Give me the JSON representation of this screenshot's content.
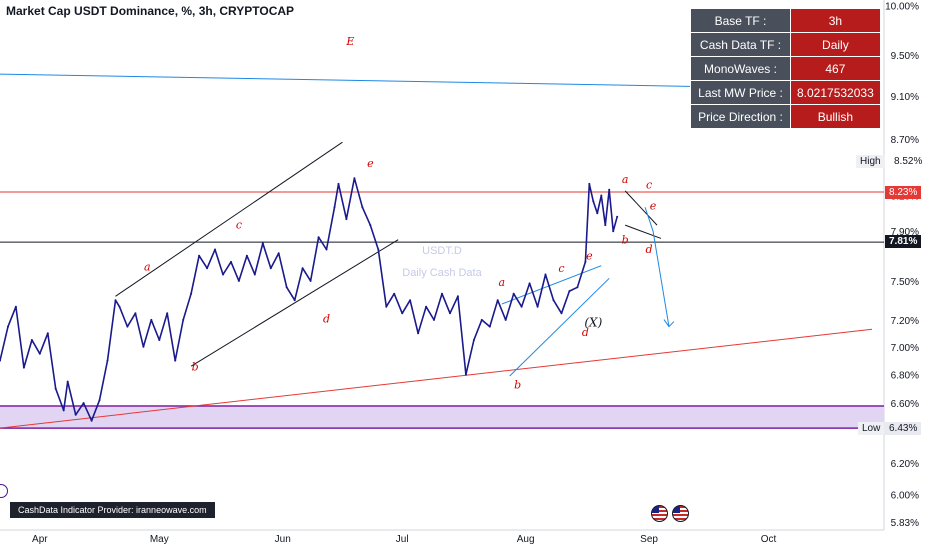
{
  "title": "Market Cap USDT Dominance, %, 3h, CRYPTOCAP",
  "info_table": [
    {
      "key": "Base TF :",
      "value": "3h"
    },
    {
      "key": "Cash Data TF :",
      "value": "Daily"
    },
    {
      "key": "MonoWaves :",
      "value": "467"
    },
    {
      "key": "Last MW Price :",
      "value": "8.0217532033"
    },
    {
      "key": "Price Direction :",
      "value": "Bullish"
    }
  ],
  "provider": "CashData Indicator Provider: iranneowave.com",
  "watermark": {
    "line1": "USDT.D",
    "line2": "Daily Cash Data"
  },
  "price_tags": {
    "red": "8.23%",
    "black": "7.81%",
    "low": "6.43%",
    "high_price": "8.52%",
    "high_label": "High",
    "low_label": "Low"
  },
  "colors": {
    "price": "#1a1a8c",
    "channel": "#131722",
    "trend_blue": "#1e88e5",
    "trend_red": "#e53935",
    "wave_label": "#d50000",
    "zone_fill": "#e1d5f3",
    "zone_border": "#7b1fa2"
  },
  "chart_data": {
    "type": "line",
    "title": "Market Cap USDT Dominance, %, 3h, CRYPTOCAP",
    "xlabel": "",
    "ylabel": "",
    "y_scale": "log",
    "ylim": [
      5.78,
      10.06
    ],
    "y_ticks": [
      "10.00%",
      "9.50%",
      "9.10%",
      "8.70%",
      "8.52%",
      "8.20%",
      "7.90%",
      "7.50%",
      "7.20%",
      "7.00%",
      "6.80%",
      "6.60%",
      "6.43%",
      "6.20%",
      "6.00%",
      "5.83%"
    ],
    "x_ticks": [
      "Apr",
      "May",
      "Jun",
      "Jul",
      "Aug",
      "Sep",
      "Oct"
    ],
    "x_tick_dates": [
      "2023-04-01",
      "2023-05-01",
      "2023-06-01",
      "2023-07-01",
      "2023-08-01",
      "2023-09-01",
      "2023-10-01"
    ],
    "xlim": [
      "2023-03-22",
      "2023-10-30"
    ],
    "grid": false,
    "legend": "none",
    "series": [
      {
        "values": [
          [
            "2023-03-22",
            6.9
          ],
          [
            "2023-03-24",
            7.15
          ],
          [
            "2023-03-26",
            7.3
          ],
          [
            "2023-03-28",
            6.85
          ],
          [
            "2023-03-30",
            7.05
          ],
          [
            "2023-04-01",
            6.95
          ],
          [
            "2023-04-03",
            7.1
          ],
          [
            "2023-04-05",
            6.7
          ],
          [
            "2023-04-07",
            6.55
          ],
          [
            "2023-04-08",
            6.75
          ],
          [
            "2023-04-10",
            6.52
          ],
          [
            "2023-04-12",
            6.6
          ],
          [
            "2023-04-14",
            6.48
          ],
          [
            "2023-04-16",
            6.62
          ],
          [
            "2023-04-18",
            6.9
          ],
          [
            "2023-04-20",
            7.35
          ],
          [
            "2023-04-21",
            7.3
          ],
          [
            "2023-04-23",
            7.15
          ],
          [
            "2023-04-25",
            7.25
          ],
          [
            "2023-04-27",
            7.0
          ],
          [
            "2023-04-29",
            7.2
          ],
          [
            "2023-05-01",
            7.05
          ],
          [
            "2023-05-03",
            7.25
          ],
          [
            "2023-05-05",
            6.9
          ],
          [
            "2023-05-07",
            7.2
          ],
          [
            "2023-05-09",
            7.4
          ],
          [
            "2023-05-11",
            7.7
          ],
          [
            "2023-05-13",
            7.6
          ],
          [
            "2023-05-15",
            7.75
          ],
          [
            "2023-05-17",
            7.55
          ],
          [
            "2023-05-19",
            7.65
          ],
          [
            "2023-05-21",
            7.5
          ],
          [
            "2023-05-23",
            7.7
          ],
          [
            "2023-05-25",
            7.55
          ],
          [
            "2023-05-27",
            7.8
          ],
          [
            "2023-05-29",
            7.6
          ],
          [
            "2023-05-31",
            7.72
          ],
          [
            "2023-06-02",
            7.45
          ],
          [
            "2023-06-04",
            7.35
          ],
          [
            "2023-06-06",
            7.6
          ],
          [
            "2023-06-08",
            7.5
          ],
          [
            "2023-06-10",
            7.85
          ],
          [
            "2023-06-12",
            7.75
          ],
          [
            "2023-06-14",
            8.1
          ],
          [
            "2023-06-15",
            8.3
          ],
          [
            "2023-06-17",
            8.0
          ],
          [
            "2023-06-19",
            8.35
          ],
          [
            "2023-06-21",
            8.1
          ],
          [
            "2023-06-23",
            7.95
          ],
          [
            "2023-06-25",
            7.75
          ],
          [
            "2023-06-27",
            7.3
          ],
          [
            "2023-06-29",
            7.4
          ],
          [
            "2023-07-01",
            7.25
          ],
          [
            "2023-07-03",
            7.35
          ],
          [
            "2023-07-05",
            7.1
          ],
          [
            "2023-07-07",
            7.3
          ],
          [
            "2023-07-09",
            7.2
          ],
          [
            "2023-07-11",
            7.4
          ],
          [
            "2023-07-13",
            7.25
          ],
          [
            "2023-07-15",
            7.38
          ],
          [
            "2023-07-17",
            6.8
          ],
          [
            "2023-07-19",
            7.05
          ],
          [
            "2023-07-21",
            7.2
          ],
          [
            "2023-07-23",
            7.15
          ],
          [
            "2023-07-25",
            7.35
          ],
          [
            "2023-07-27",
            7.2
          ],
          [
            "2023-07-29",
            7.4
          ],
          [
            "2023-07-31",
            7.3
          ],
          [
            "2023-08-02",
            7.48
          ],
          [
            "2023-08-04",
            7.3
          ],
          [
            "2023-08-06",
            7.55
          ],
          [
            "2023-08-08",
            7.35
          ],
          [
            "2023-08-10",
            7.25
          ],
          [
            "2023-08-12",
            7.42
          ],
          [
            "2023-08-14",
            7.45
          ],
          [
            "2023-08-16",
            7.65
          ],
          [
            "2023-08-17",
            8.3
          ],
          [
            "2023-08-18",
            8.15
          ],
          [
            "2023-08-19",
            8.05
          ],
          [
            "2023-08-20",
            8.2
          ],
          [
            "2023-08-21",
            7.95
          ],
          [
            "2023-08-22",
            8.25
          ],
          [
            "2023-08-23",
            7.9
          ],
          [
            "2023-08-24",
            8.02
          ]
        ]
      }
    ],
    "annotations": [
      {
        "text": "E",
        "x": "2023-06-18",
        "y": 9.6
      },
      {
        "text": "a",
        "x": "2023-04-28",
        "y": 7.58
      },
      {
        "text": "b",
        "x": "2023-05-10",
        "y": 6.83
      },
      {
        "text": "c",
        "x": "2023-05-21",
        "y": 7.92
      },
      {
        "text": "d",
        "x": "2023-06-12",
        "y": 7.18
      },
      {
        "text": "e",
        "x": "2023-06-23",
        "y": 8.45
      },
      {
        "text": "a",
        "x": "2023-07-26",
        "y": 7.46
      },
      {
        "text": "b",
        "x": "2023-07-30",
        "y": 6.7
      },
      {
        "text": "c",
        "x": "2023-08-10",
        "y": 7.57
      },
      {
        "text": "d",
        "x": "2023-08-16",
        "y": 7.08
      },
      {
        "text": "e",
        "x": "2023-08-17",
        "y": 7.67
      },
      {
        "text": "(X)",
        "x": "2023-08-18",
        "y": 7.15
      },
      {
        "text": "a",
        "x": "2023-08-26",
        "y": 8.31
      },
      {
        "text": "b",
        "x": "2023-08-26",
        "y": 7.8
      },
      {
        "text": "c",
        "x": "2023-09-01",
        "y": 8.26
      },
      {
        "text": "d",
        "x": "2023-09-01",
        "y": 7.72
      },
      {
        "text": "e",
        "x": "2023-09-02",
        "y": 8.08
      }
    ],
    "horizontal_lines": [
      {
        "y": 8.23,
        "color": "#e53935"
      },
      {
        "y": 7.81,
        "color": "#131722"
      }
    ],
    "zones": [
      {
        "y_from": 6.43,
        "y_to": 6.58,
        "color": "#e1d5f3"
      }
    ]
  }
}
